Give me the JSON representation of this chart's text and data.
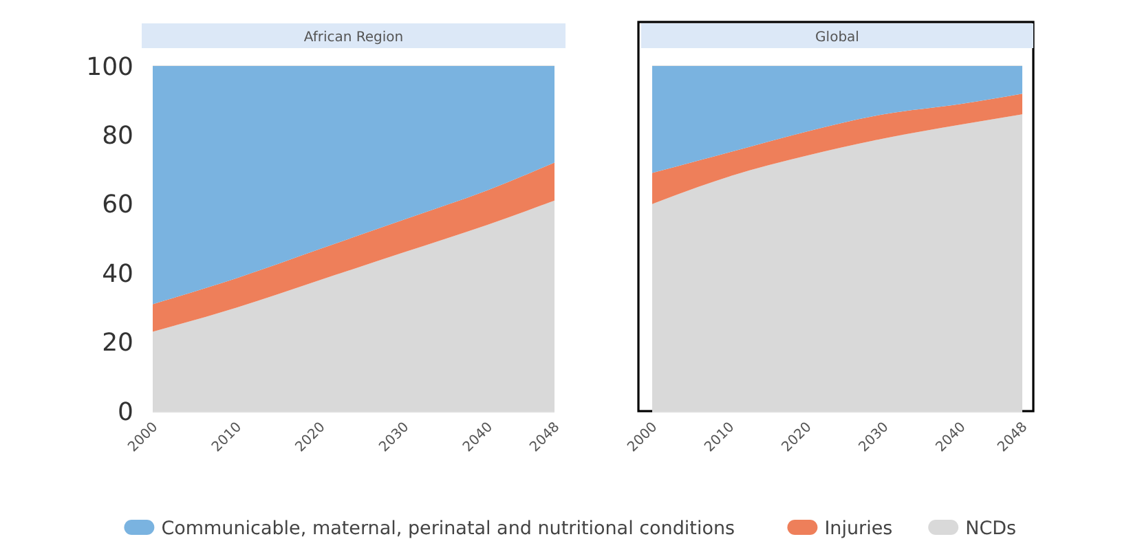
{
  "chart_data": [
    {
      "type": "area",
      "title": "African Region",
      "stacked": true,
      "x": [
        2000,
        2010,
        2020,
        2030,
        2040,
        2048
      ],
      "xlim": [
        2000,
        2048
      ],
      "xticks": [
        2000,
        2010,
        2020,
        2030,
        2040,
        2048
      ],
      "ylim": [
        0,
        100
      ],
      "yticks": [
        0,
        20,
        40,
        60,
        80,
        100
      ],
      "grid": "y",
      "legend": "bottom",
      "series": [
        {
          "name": "NCDs",
          "color": "#d9d9d9",
          "values": [
            23,
            30,
            38,
            46,
            54,
            61
          ]
        },
        {
          "name": "Injuries",
          "color": "#ee7f5a",
          "values": [
            8,
            8.5,
            9,
            9.5,
            10,
            11
          ]
        },
        {
          "name": "Communicable, maternal, perinatal and nutritional conditions",
          "color": "#7ab3e0",
          "values": [
            69,
            61.5,
            53,
            44.5,
            36,
            28
          ]
        }
      ]
    },
    {
      "type": "area",
      "title": "Global",
      "stacked": true,
      "x": [
        2000,
        2010,
        2020,
        2030,
        2040,
        2048
      ],
      "xlim": [
        2000,
        2048
      ],
      "xticks": [
        2000,
        2010,
        2020,
        2030,
        2040,
        2048
      ],
      "ylim": [
        0,
        100
      ],
      "yticks": [
        0,
        20,
        40,
        60,
        80,
        100
      ],
      "tick_labels": "x",
      "grid": "y",
      "series": [
        {
          "color": "#d9d9d9",
          "values": [
            60,
            68,
            74,
            79,
            83,
            86
          ]
        },
        {
          "color": "#ee7f5a",
          "values": [
            9,
            7,
            7,
            7,
            6,
            6
          ]
        },
        {
          "color": "#7ab3e0",
          "values": [
            31,
            25,
            19,
            14,
            11,
            8
          ]
        }
      ]
    }
  ]
}
